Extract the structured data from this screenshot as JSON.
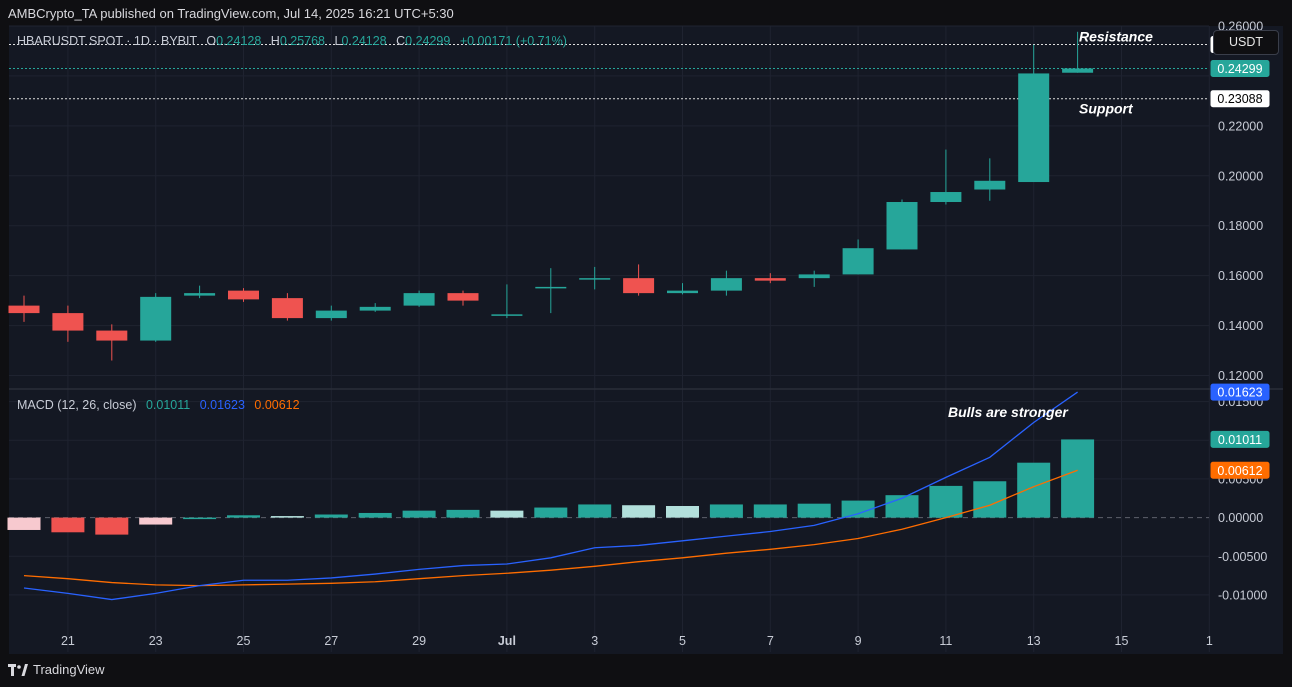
{
  "header": {
    "published": "AMBCrypto_TA published on TradingView.com, Jul 14, 2025 16:21 UTC+5:30"
  },
  "footer": {
    "brand": "TradingView"
  },
  "colors": {
    "up": "#26a69a",
    "down": "#ef5350",
    "macd": "#2962ff",
    "signal": "#ff6d00"
  },
  "icons": [
    "tradingview-logo-icon"
  ],
  "chart_data": [
    {
      "type": "candlestick",
      "symbol": "HBARUSDT SPOT · 1D · BYBIT",
      "ohlc_legend": {
        "o_label": "O",
        "o": "0.24128",
        "h_label": "H",
        "h": "0.25768",
        "l_label": "L",
        "l": "0.24128",
        "c_label": "C",
        "c": "0.24299",
        "change": "+0.00171 (+0.71%)"
      },
      "currency": "USDT",
      "ylim": [
        0.115,
        0.26
      ],
      "y_ticks": [
        "0.12000",
        "0.14000",
        "0.16000",
        "0.18000",
        "0.20000",
        "0.22000",
        "0.26000"
      ],
      "x_ticks": [
        "21",
        "23",
        "25",
        "27",
        "29",
        "Jul",
        "3",
        "5",
        "7",
        "9",
        "11",
        "13",
        "15",
        "1"
      ],
      "x": [
        "2025-06-20",
        "2025-06-21",
        "2025-06-22",
        "2025-06-23",
        "2025-06-24",
        "2025-06-25",
        "2025-06-26",
        "2025-06-27",
        "2025-06-28",
        "2025-06-29",
        "2025-06-30",
        "2025-07-01",
        "2025-07-02",
        "2025-07-03",
        "2025-07-04",
        "2025-07-05",
        "2025-07-06",
        "2025-07-07",
        "2025-07-08",
        "2025-07-09",
        "2025-07-10",
        "2025-07-11",
        "2025-07-12",
        "2025-07-13",
        "2025-07-14"
      ],
      "open": [
        0.148,
        0.145,
        0.138,
        0.134,
        0.152,
        0.154,
        0.151,
        0.143,
        0.146,
        0.148,
        0.153,
        0.144,
        0.155,
        0.159,
        0.159,
        0.153,
        0.154,
        0.159,
        0.159,
        0.1605,
        0.1705,
        0.1895,
        0.1945,
        0.1975,
        0.24128
      ],
      "high": [
        0.152,
        0.148,
        0.1405,
        0.153,
        0.156,
        0.155,
        0.153,
        0.148,
        0.149,
        0.154,
        0.154,
        0.1565,
        0.163,
        0.1635,
        0.1645,
        0.157,
        0.162,
        0.161,
        0.162,
        0.1745,
        0.1905,
        0.2105,
        0.207,
        0.2525,
        0.25768
      ],
      "low": [
        0.1415,
        0.1335,
        0.126,
        0.1335,
        0.151,
        0.1495,
        0.142,
        0.142,
        0.1455,
        0.1475,
        0.148,
        0.143,
        0.145,
        0.1545,
        0.152,
        0.1525,
        0.152,
        0.157,
        0.1555,
        0.1605,
        0.1705,
        0.1885,
        0.19,
        0.1975,
        0.24128
      ],
      "close": [
        0.145,
        0.138,
        0.134,
        0.1515,
        0.153,
        0.1505,
        0.143,
        0.146,
        0.1475,
        0.153,
        0.15,
        0.1445,
        0.1555,
        0.159,
        0.153,
        0.154,
        0.159,
        0.158,
        0.1605,
        0.171,
        0.1895,
        0.1935,
        0.198,
        0.241,
        0.24299
      ],
      "price_labels": {
        "resistance": {
          "value": "0.25257",
          "text": "Resistance"
        },
        "current": {
          "value": "0.24299"
        },
        "support": {
          "value": "0.23088",
          "text": "Support"
        }
      }
    },
    {
      "type": "macd",
      "title": "MACD (12, 26, close)",
      "legend_values": {
        "histogram": "0.01011",
        "macd": "0.01623",
        "signal": "0.00612"
      },
      "ylim": [
        -0.0135,
        0.0165
      ],
      "y_ticks": [
        "-0.01000",
        "-0.00500",
        "0.00000",
        "0.00500",
        "0.01500"
      ],
      "axis_labels": {
        "macd": "0.01623",
        "histogram": "0.01011",
        "signal": "0.00612"
      },
      "annotation": "Bulls are stronger",
      "histogram": [
        -0.0016,
        -0.0019,
        -0.0022,
        -0.0009,
        -0.0001,
        0.0003,
        0.0002,
        0.0004,
        0.0006,
        0.0009,
        0.001,
        0.0009,
        0.0013,
        0.0017,
        0.0016,
        0.0015,
        0.0017,
        0.0017,
        0.0018,
        0.0022,
        0.0029,
        0.0041,
        0.0047,
        0.0071,
        0.01011
      ],
      "macd": [
        -0.0091,
        -0.0098,
        -0.0106,
        -0.0098,
        -0.0088,
        -0.0081,
        -0.0081,
        -0.0078,
        -0.0073,
        -0.0067,
        -0.0062,
        -0.006,
        -0.0052,
        -0.0039,
        -0.0036,
        -0.003,
        -0.0024,
        -0.0018,
        -0.001,
        0.0005,
        0.0025,
        0.0052,
        0.0078,
        0.0123,
        0.01623
      ],
      "signal": [
        -0.0075,
        -0.0079,
        -0.0084,
        -0.0087,
        -0.0088,
        -0.0087,
        -0.0086,
        -0.0085,
        -0.0083,
        -0.0079,
        -0.0075,
        -0.0072,
        -0.0068,
        -0.0063,
        -0.0057,
        -0.0052,
        -0.0046,
        -0.0041,
        -0.0035,
        -0.0027,
        -0.0015,
        0.0,
        0.0016,
        0.004,
        0.00612
      ],
      "histogram_colors": [
        "#f7c9cf",
        "#ef5350",
        "#ef5350",
        "#f7c9cf",
        "#26a69a",
        "#26a69a",
        "#b2dfdb",
        "#26a69a",
        "#26a69a",
        "#26a69a",
        "#26a69a",
        "#b2dfdb",
        "#26a69a",
        "#26a69a",
        "#b2dfdb",
        "#b2dfdb",
        "#26a69a",
        "#26a69a",
        "#26a69a",
        "#26a69a",
        "#26a69a",
        "#26a69a",
        "#26a69a",
        "#26a69a",
        "#26a69a"
      ]
    }
  ]
}
